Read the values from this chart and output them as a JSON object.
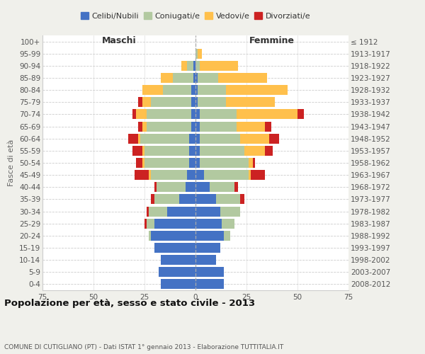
{
  "age_groups": [
    "100+",
    "95-99",
    "90-94",
    "85-89",
    "80-84",
    "75-79",
    "70-74",
    "65-69",
    "60-64",
    "55-59",
    "50-54",
    "45-49",
    "40-44",
    "35-39",
    "30-34",
    "25-29",
    "20-24",
    "15-19",
    "10-14",
    "5-9",
    "0-4"
  ],
  "birth_years": [
    "≤ 1912",
    "1913-1917",
    "1918-1922",
    "1923-1927",
    "1928-1932",
    "1933-1937",
    "1938-1942",
    "1943-1947",
    "1948-1952",
    "1953-1957",
    "1958-1962",
    "1963-1967",
    "1968-1972",
    "1973-1977",
    "1978-1982",
    "1983-1987",
    "1988-1992",
    "1993-1997",
    "1998-2002",
    "2003-2007",
    "2008-2012"
  ],
  "male": {
    "celibi": [
      0,
      0,
      1,
      1,
      2,
      2,
      2,
      2,
      3,
      3,
      3,
      4,
      5,
      8,
      14,
      20,
      22,
      20,
      17,
      18,
      17
    ],
    "coniugati": [
      0,
      0,
      3,
      10,
      14,
      20,
      22,
      22,
      24,
      22,
      22,
      18,
      14,
      12,
      9,
      4,
      1,
      0,
      0,
      0,
      0
    ],
    "vedovi": [
      0,
      0,
      3,
      6,
      10,
      4,
      5,
      2,
      1,
      1,
      1,
      1,
      0,
      0,
      0,
      0,
      0,
      0,
      0,
      0,
      0
    ],
    "divorziati": [
      0,
      0,
      0,
      0,
      0,
      2,
      2,
      2,
      5,
      5,
      3,
      7,
      1,
      2,
      1,
      1,
      0,
      0,
      0,
      0,
      0
    ]
  },
  "female": {
    "nubili": [
      0,
      0,
      0,
      1,
      1,
      1,
      2,
      2,
      2,
      2,
      2,
      4,
      7,
      10,
      12,
      13,
      14,
      12,
      10,
      14,
      14
    ],
    "coniugate": [
      0,
      1,
      2,
      10,
      14,
      14,
      18,
      18,
      20,
      22,
      24,
      22,
      12,
      12,
      10,
      6,
      3,
      0,
      0,
      0,
      0
    ],
    "vedove": [
      0,
      2,
      19,
      24,
      30,
      24,
      30,
      14,
      14,
      10,
      2,
      1,
      0,
      0,
      0,
      0,
      0,
      0,
      0,
      0,
      0
    ],
    "divorziate": [
      0,
      0,
      0,
      0,
      0,
      0,
      3,
      3,
      5,
      4,
      1,
      7,
      2,
      2,
      0,
      0,
      0,
      0,
      0,
      0,
      0
    ]
  },
  "colors": {
    "celibi": "#4472c4",
    "coniugati": "#b2c9a0",
    "vedovi": "#ffc04c",
    "divorziati": "#cc2222"
  },
  "xlim": 75,
  "title": "Popolazione per età, sesso e stato civile - 2013",
  "subtitle": "COMUNE DI CUTIGLIANO (PT) - Dati ISTAT 1° gennaio 2013 - Elaborazione TUTTITALIA.IT",
  "xlabel_left": "Maschi",
  "xlabel_right": "Femmine",
  "ylabel": "Fasce di età",
  "bg_color": "#f0f0eb",
  "plot_bg": "#ffffff",
  "legend_labels": [
    "Celibi/Nubili",
    "Coniugati/e",
    "Vedovi/e",
    "Divorziati/e"
  ]
}
